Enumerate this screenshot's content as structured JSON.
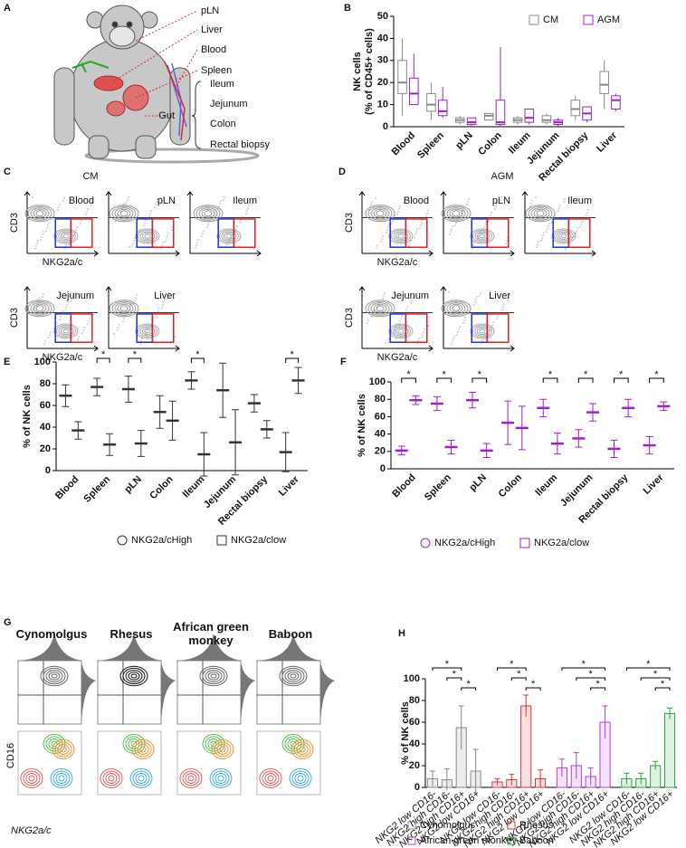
{
  "panels": {
    "A": "A",
    "C": "C",
    "D": "D",
    "G": "G"
  },
  "body_map": {
    "labels": [
      "pLN",
      "Liver",
      "Blood",
      "Spleen"
    ],
    "gut_label": "Gut",
    "gut_parts": [
      "Ileum",
      "Jejunum",
      "Colon",
      "Rectal biopsy"
    ]
  },
  "flow": [
    {
      "title": "CM",
      "tissues": [
        "Blood",
        "pLN",
        "Ileum",
        "Jejunum",
        "Liver"
      ],
      "xlabel": "NKG2a/c",
      "ylabel": "CD3"
    },
    {
      "title": "AGM",
      "tissues": [
        "Blood",
        "pLN",
        "Ileum",
        "Jejunum",
        "Liver"
      ],
      "xlabel": "NKG2a/c",
      "ylabel": "CD3"
    }
  ],
  "species_flow": {
    "species": [
      "Cynomolgus",
      "Rhesus",
      "African green monkey",
      "Baboon"
    ],
    "xlabel": "NKG2a/c",
    "ylabel": "CD16"
  },
  "chart_data": [
    {
      "panel": "B",
      "type": "box",
      "ylabel": [
        "NK cells",
        "(% of CD45+ cells)"
      ],
      "categories": [
        "Blood",
        "Spleen",
        "pLN",
        "Colon",
        "Ileum",
        "Jejunum",
        "Rectal biopsy",
        "Liver"
      ],
      "ylim": [
        0,
        50
      ],
      "yticks": [
        0,
        10,
        20,
        30,
        40,
        50
      ],
      "legend": "top-right",
      "series": [
        {
          "name": "CM",
          "color": "#888888",
          "min": [
            5,
            3,
            1,
            3,
            1,
            1,
            3,
            8
          ],
          "q1": [
            15,
            7,
            2,
            3,
            2,
            2,
            5,
            15
          ],
          "median": [
            20,
            10,
            3,
            5,
            3,
            3,
            8,
            19
          ],
          "q3": [
            30,
            15,
            4,
            6,
            4,
            5,
            12,
            25
          ],
          "max": [
            40,
            20,
            5,
            6,
            5,
            6,
            14,
            30
          ]
        },
        {
          "name": "AGM",
          "color": "#a020c8",
          "min": [
            10,
            4,
            0,
            0,
            1,
            0,
            2,
            7
          ],
          "q1": [
            10,
            5,
            1,
            1,
            2,
            1,
            3,
            8
          ],
          "median": [
            15,
            7,
            2,
            2,
            4,
            2,
            6,
            12
          ],
          "q3": [
            22,
            12,
            4,
            12,
            8,
            3,
            9,
            14
          ],
          "max": [
            33,
            18,
            4,
            36,
            8,
            4,
            9,
            15
          ]
        }
      ]
    },
    {
      "panel": "E",
      "type": "dot",
      "ylabel": "% of NK cells",
      "categories": [
        "Blood",
        "Spleen",
        "pLN",
        "Colon",
        "Ileum",
        "Jejunum",
        "Rectal biopsy",
        "Liver"
      ],
      "ylim": [
        0,
        100
      ],
      "yticks": [
        0,
        20,
        40,
        60,
        80,
        100
      ],
      "series": [
        {
          "name": "NKG2a/cHigh",
          "color": "#333333",
          "marker": "circle",
          "values": [
            69,
            77,
            75,
            54,
            83,
            74,
            62,
            17
          ],
          "errors": [
            10,
            8,
            12,
            15,
            8,
            25,
            8,
            18
          ]
        },
        {
          "name": "NKG2a/clow",
          "color": "#333333",
          "marker": "square",
          "values": [
            37,
            24,
            25,
            46,
            15,
            26,
            38,
            83
          ],
          "errors": [
            8,
            10,
            12,
            18,
            20,
            30,
            8,
            12
          ]
        }
      ],
      "significance": [
        null,
        "*",
        "*",
        null,
        "*",
        null,
        null,
        "*"
      ]
    },
    {
      "panel": "F",
      "type": "dot",
      "ylabel": "% of NK cells",
      "categories": [
        "Blood",
        "Spleen",
        "pLN",
        "Colon",
        "Ileum",
        "Jejunum",
        "Rectal biopsy",
        "Liver"
      ],
      "ylim": [
        0,
        100
      ],
      "yticks": [
        0,
        20,
        40,
        60,
        80,
        100
      ],
      "series": [
        {
          "name": "NKG2a/cHigh",
          "color": "#a020c8",
          "marker": "circle",
          "values": [
            21,
            75,
            79,
            53,
            70,
            35,
            23,
            27
          ],
          "errors": [
            5,
            8,
            9,
            25,
            10,
            10,
            10,
            10
          ]
        },
        {
          "name": "NKG2a/clow",
          "color": "#a020c8",
          "marker": "square",
          "values": [
            79,
            25,
            21,
            47,
            29,
            65,
            70,
            72
          ],
          "errors": [
            5,
            8,
            8,
            25,
            12,
            10,
            10,
            5
          ]
        }
      ],
      "significance": [
        "*",
        "*",
        "*",
        null,
        "*",
        "*",
        "*",
        "*"
      ]
    },
    {
      "panel": "H",
      "type": "bar",
      "ylabel": "% of NK cells",
      "categories": [
        "NKG2 low CD16-",
        "NKG2 high CD16-",
        "NKG2 high CD16+",
        "NKG2 low CD16+"
      ],
      "ylim": [
        0,
        100
      ],
      "yticks": [
        0,
        20,
        40,
        60,
        80,
        100
      ],
      "series": [
        {
          "name": "Cynomolgus",
          "color": "#888888",
          "values": [
            8,
            7,
            55,
            15
          ],
          "errors": [
            7,
            10,
            20,
            20
          ]
        },
        {
          "name": "Rhesus",
          "color": "#e03030",
          "values": [
            5,
            7,
            75,
            8
          ],
          "errors": [
            3,
            5,
            10,
            8
          ]
        },
        {
          "name": "African green monkey",
          "color": "#b040d0",
          "values": [
            18,
            20,
            10,
            60
          ],
          "errors": [
            8,
            12,
            8,
            15
          ]
        },
        {
          "name": "Baboon",
          "color": "#30a040",
          "values": [
            8,
            8,
            20,
            68
          ],
          "errors": [
            5,
            5,
            4,
            5
          ]
        }
      ],
      "comparisons": [
        {
          "series": 0,
          "between": [
            0,
            2
          ],
          "label": "*"
        },
        {
          "series": 0,
          "between": [
            1,
            2
          ],
          "label": "*"
        },
        {
          "series": 0,
          "between": [
            2,
            3
          ],
          "label": "*"
        },
        {
          "series": 1,
          "between": [
            0,
            2
          ],
          "label": "*"
        },
        {
          "series": 1,
          "between": [
            1,
            2
          ],
          "label": "*"
        },
        {
          "series": 1,
          "between": [
            2,
            3
          ],
          "label": "*"
        },
        {
          "series": 2,
          "between": [
            0,
            3
          ],
          "label": "*"
        },
        {
          "series": 2,
          "between": [
            1,
            3
          ],
          "label": "*"
        },
        {
          "series": 2,
          "between": [
            2,
            3
          ],
          "label": "*"
        },
        {
          "series": 3,
          "between": [
            0,
            3
          ],
          "label": "*"
        },
        {
          "series": 3,
          "between": [
            1,
            3
          ],
          "label": "*"
        },
        {
          "series": 3,
          "between": [
            2,
            3
          ],
          "label": "*"
        }
      ]
    }
  ]
}
